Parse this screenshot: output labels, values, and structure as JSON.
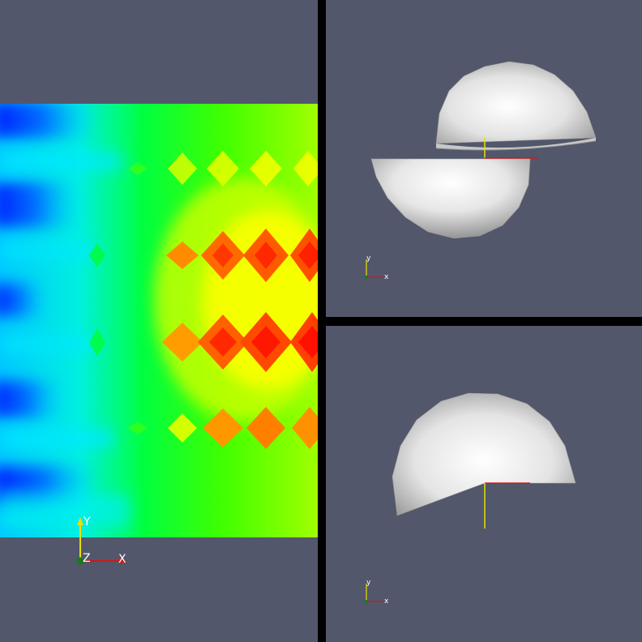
{
  "colors": {
    "background": "#52576b",
    "divider": "#000000",
    "axis_x": "#d01818",
    "axis_y": "#e8e000",
    "axis_z": "#1a7a1a",
    "axis_label": "#ffffff",
    "sphere_light": "#ffffff",
    "sphere_dark": "#7a7a7a"
  },
  "colormap": "rainbow-jet",
  "views": {
    "left": {
      "type": "scalar-field-slice",
      "orientation": {
        "x_label": "X",
        "y_label": "Y",
        "z_label": "Z"
      }
    },
    "top_right": {
      "type": "split-hemispheres",
      "orientation": {
        "x_label": "x",
        "y_label": "y"
      }
    },
    "bottom_right": {
      "type": "clipped-hemisphere",
      "orientation": {
        "x_label": "x",
        "y_label": "y"
      }
    }
  }
}
